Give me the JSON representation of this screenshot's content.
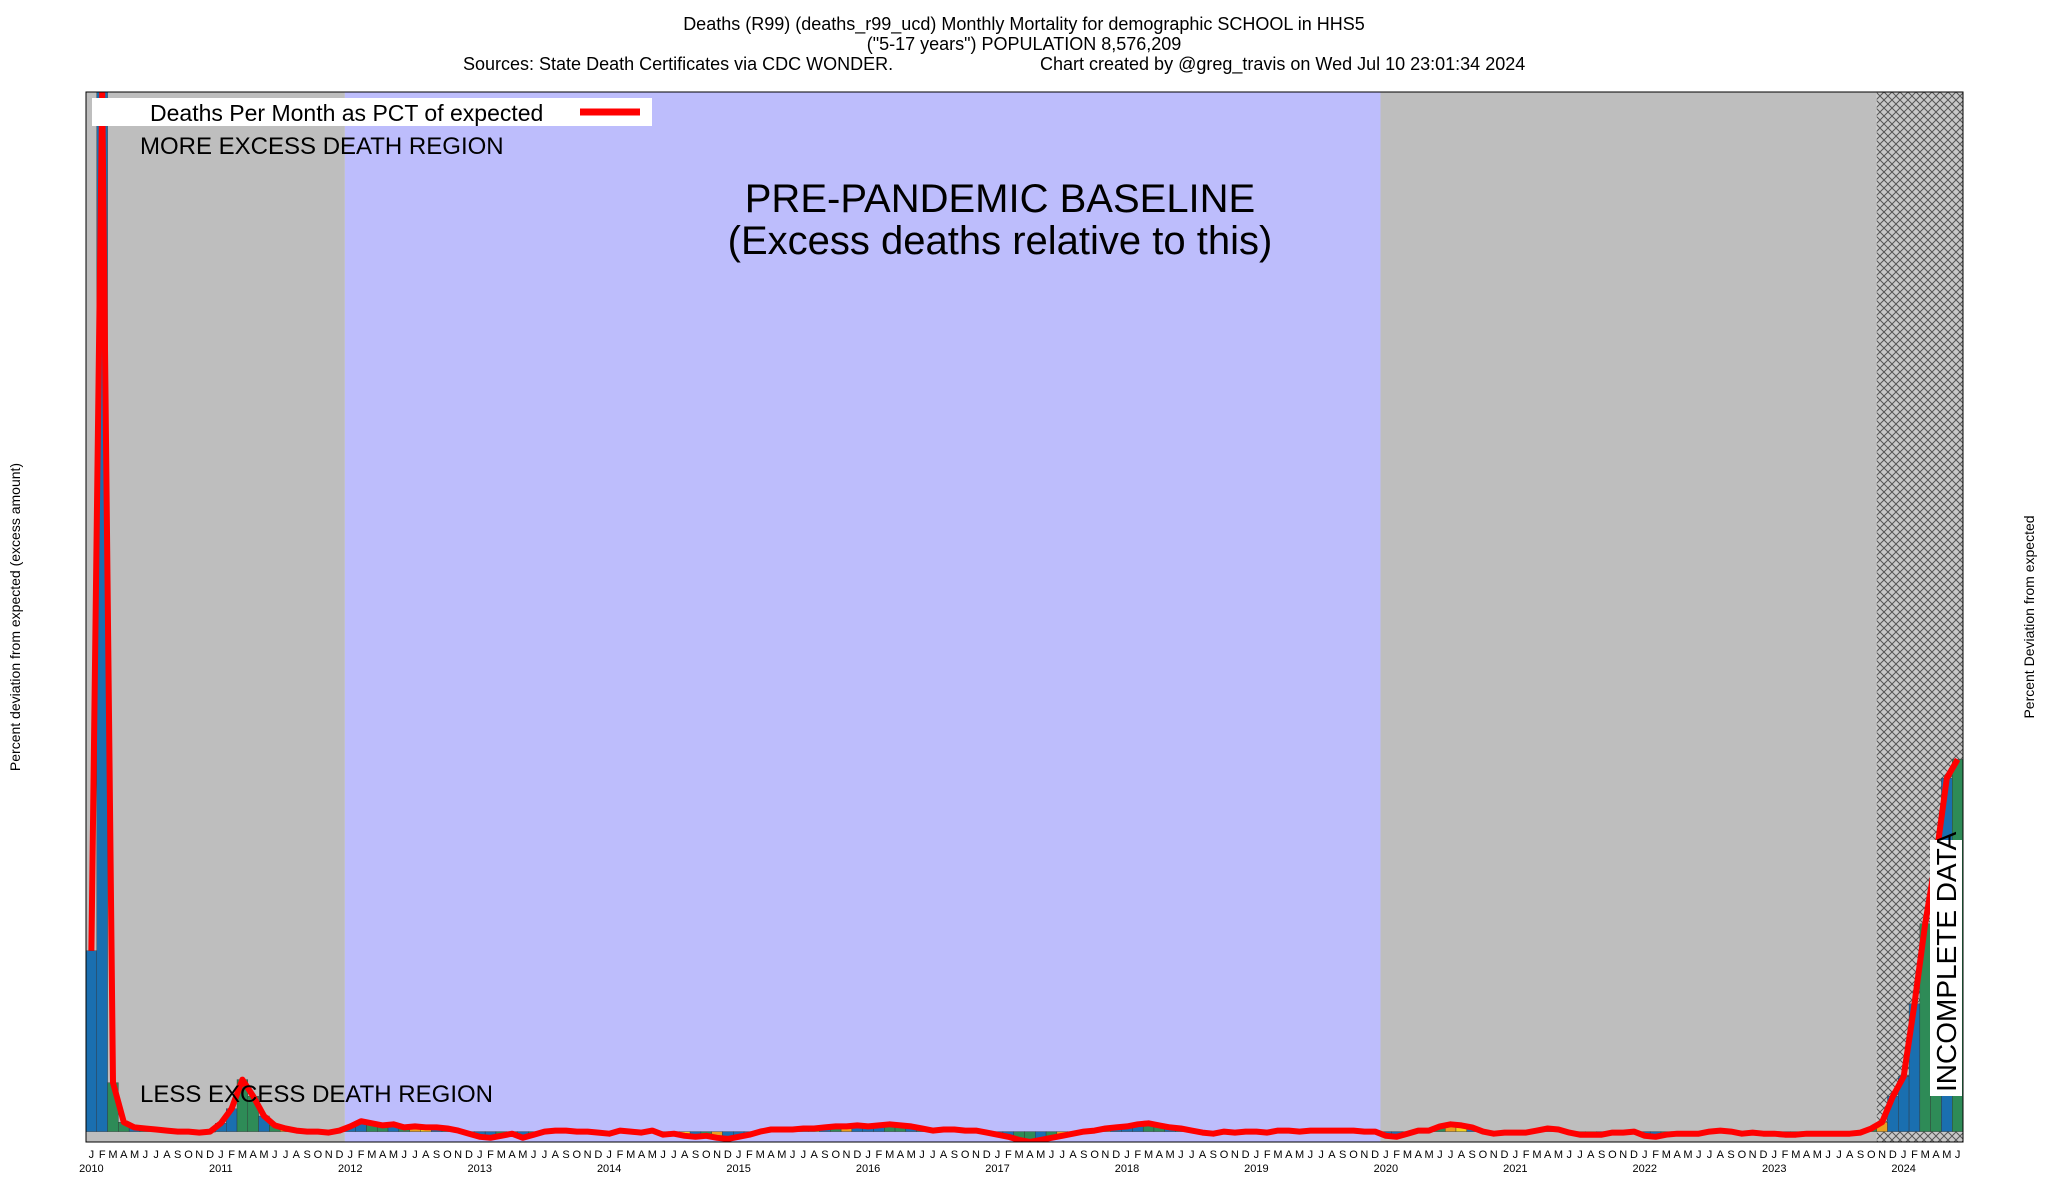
{
  "chart_data": {
    "type": "bar-line",
    "title": "Deaths (R99) (deaths_r99_ucd) Monthly Mortality for demographic SCHOOL in HHS5",
    "subtitle": "(\"5-17 years\") POPULATION 8,576,209",
    "sources": "Sources: State Death Certificates via CDC WONDER.",
    "credit": "Chart created by @greg_travis on Wed Jul 10 23:01:34 2024",
    "y_label": "Percent deviation from expected (excess amount)",
    "y2_label": "Percent Deviation from expected",
    "annotations": {
      "more": "MORE EXCESS DEATH REGION",
      "less": "LESS EXCESS DEATH REGION",
      "baseline": "PRE-PANDEMIC BASELINE",
      "baseline_note": "(Excess deaths relative to this)",
      "incomplete": "INCOMPLETE DATA"
    },
    "regions": [
      {
        "from": 0,
        "to": 24,
        "color": "#bebebe"
      },
      {
        "from": 24,
        "to": 120,
        "color": "#bdbdfc"
      },
      {
        "from": 120,
        "to": 166,
        "color": "#bebebe"
      },
      {
        "from": 166,
        "to": 174,
        "color": "hatch"
      }
    ],
    "years": [
      "2010",
      "2011",
      "2012",
      "2013",
      "2014",
      "2015",
      "2016",
      "2017",
      "2018",
      "2019",
      "2020",
      "2021",
      "2022",
      "2023",
      "2024"
    ],
    "categories": [
      "J",
      "F",
      "M",
      "A",
      "M",
      "J",
      "J",
      "A",
      "S",
      "O",
      "N",
      "D",
      "J",
      "F",
      "M",
      "A",
      "M",
      "J",
      "J",
      "A",
      "S",
      "O",
      "N",
      "D",
      "J",
      "F",
      "M",
      "A",
      "M",
      "J",
      "J",
      "A",
      "S",
      "O",
      "N",
      "D",
      "J",
      "F",
      "M",
      "A",
      "M",
      "J",
      "J",
      "A",
      "S",
      "O",
      "N",
      "D",
      "J",
      "F",
      "M",
      "A",
      "M",
      "J",
      "J",
      "A",
      "S",
      "O",
      "N",
      "D",
      "J",
      "F",
      "M",
      "A",
      "M",
      "J",
      "J",
      "A",
      "S",
      "O",
      "N",
      "D",
      "J",
      "F",
      "M",
      "A",
      "M",
      "J",
      "J",
      "A",
      "S",
      "O",
      "N",
      "D",
      "J",
      "F",
      "M",
      "A",
      "M",
      "J",
      "J",
      "A",
      "S",
      "O",
      "N",
      "D",
      "J",
      "F",
      "M",
      "A",
      "M",
      "J",
      "J",
      "A",
      "S",
      "O",
      "N",
      "D",
      "J",
      "F",
      "M",
      "A",
      "M",
      "J",
      "J",
      "A",
      "S",
      "O",
      "N",
      "D",
      "J",
      "F",
      "M",
      "A",
      "M",
      "J",
      "J",
      "A",
      "S",
      "O",
      "N",
      "D",
      "J",
      "F",
      "M",
      "A",
      "M",
      "J",
      "J",
      "A",
      "S",
      "O",
      "N",
      "D",
      "J",
      "F",
      "M",
      "A",
      "M",
      "J",
      "J",
      "A",
      "S",
      "O",
      "N",
      "D",
      "J",
      "F",
      "M",
      "A",
      "M",
      "J",
      "J",
      "A",
      "S",
      "O",
      "N",
      "D",
      "J",
      "F",
      "M",
      "A",
      "M",
      "J"
    ],
    "bar_colors": [
      "#1a6fb0",
      "#1a6fb0",
      "#2e8b57",
      "#2e8b57",
      "#1a6fb0",
      "#2e8b57",
      "#e8a020",
      "#f0d020",
      "#1a6fb0",
      "#2e8b57",
      "#e8a020",
      "#1a6fb0"
    ],
    "series": [
      {
        "name": "Deaths Per Month as PCT of expected",
        "color": "#ff0000",
        "values": [
          174,
          1000,
          47,
          9,
          4,
          3,
          2,
          1,
          0,
          0,
          -1,
          0,
          8,
          22,
          50,
          34,
          15,
          6,
          3,
          1,
          0,
          0,
          -1,
          1,
          5,
          10,
          8,
          6,
          7,
          4,
          5,
          4,
          4,
          3,
          1,
          -2,
          -5,
          -6,
          -4,
          -2,
          -6,
          -3,
          0,
          1,
          1,
          0,
          0,
          -1,
          -2,
          1,
          0,
          -1,
          1,
          -3,
          -2,
          -4,
          -5,
          -4,
          -6,
          -7,
          -5,
          -3,
          0,
          2,
          2,
          2,
          3,
          3,
          4,
          5,
          5,
          6,
          5,
          6,
          7,
          6,
          5,
          3,
          1,
          2,
          2,
          1,
          1,
          -1,
          -3,
          -5,
          -8,
          -10,
          -8,
          -6,
          -4,
          -2,
          0,
          1,
          3,
          4,
          5,
          7,
          8,
          6,
          4,
          3,
          1,
          -1,
          -2,
          0,
          -1,
          0,
          0,
          -1,
          1,
          1,
          0,
          1,
          1,
          1,
          1,
          1,
          0,
          0,
          -4,
          -5,
          -2,
          1,
          1,
          5,
          7,
          6,
          4,
          0,
          -2,
          -1,
          -1,
          -1,
          1,
          3,
          2,
          -1,
          -3,
          -3,
          -3,
          -1,
          -1,
          0,
          -4,
          -5,
          -3,
          -2,
          -2,
          -2,
          0,
          1,
          0,
          -2,
          -1,
          -2,
          -2,
          -3,
          -3,
          -2,
          -2,
          -2,
          -2,
          -2,
          -1,
          3,
          9,
          34,
          53,
          123,
          200,
          263,
          340,
          358
        ]
      }
    ],
    "ylim": [
      -10,
      1000
    ]
  }
}
